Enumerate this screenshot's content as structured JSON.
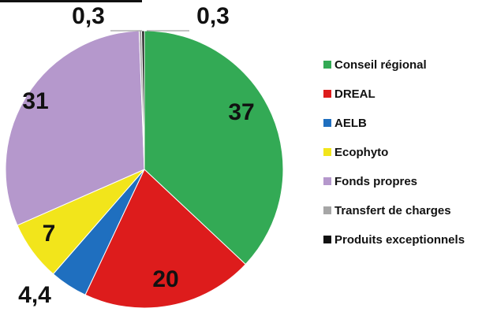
{
  "chart_data": {
    "type": "pie",
    "slices": [
      {
        "label": "Conseil régional",
        "value": 37,
        "value_label": "37",
        "color": "#33aa55"
      },
      {
        "label": "DREAL",
        "value": 20,
        "value_label": "20",
        "color": "#dd1c1c"
      },
      {
        "label": "AELB",
        "value": 4.4,
        "value_label": "4,4",
        "color": "#1f6fbf"
      },
      {
        "label": "Ecophyto",
        "value": 7,
        "value_label": "7",
        "color": "#f2e51b"
      },
      {
        "label": "Fonds propres",
        "value": 31,
        "value_label": "31",
        "color": "#b598cc"
      },
      {
        "label": "Transfert de charges",
        "value": 0.3,
        "value_label": "0,3",
        "color": "#a6a6a6"
      },
      {
        "label": "Produits exceptionnels",
        "value": 0.3,
        "value_label": "0,3",
        "color": "#111111"
      }
    ],
    "legend_position": "right"
  }
}
